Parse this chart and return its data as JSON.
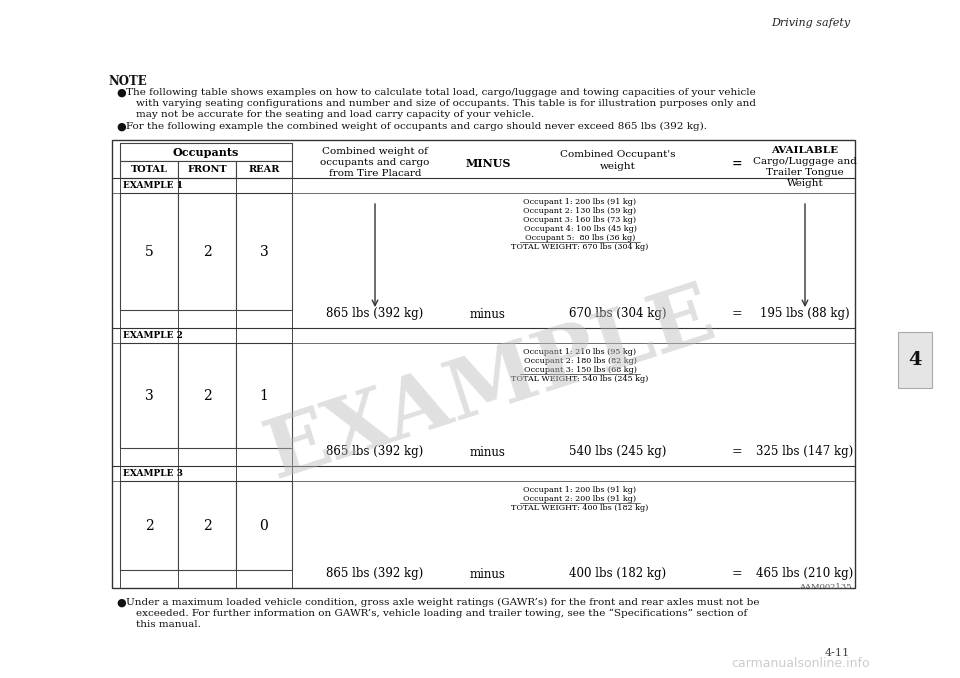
{
  "bg_color": "#ffffff",
  "page_header": "Driving safety",
  "chapter_number": "4",
  "note_title": "NOTE",
  "bullet1_line1": "The following table shows examples on how to calculate total load, cargo/luggage and towing capacities of your vehicle",
  "bullet1_line2": "with varying seating configurations and number and size of occupants. This table is for illustration purposes only and",
  "bullet1_line3": "may not be accurate for the seating and load carry capacity of your vehicle.",
  "bullet2": "For the following example the combined weight of occupants and cargo should never exceed 865 lbs (392 kg).",
  "table_header_occupants": "Occupants",
  "col_total": "TOTAL",
  "col_front": "FRONT",
  "col_rear": "REAR",
  "col2_header1": "Combined weight of",
  "col2_header2": "occupants and cargo",
  "col2_header3": "from Tire Placard",
  "col3_header": "MINUS",
  "col4_header1": "Combined Occupant's",
  "col4_header2": "weight",
  "col5_eq": "=",
  "col6_header1": "AVAILABLE",
  "col6_header2": "Cargo/Luggage and",
  "col6_header3": "Trailer Tongue",
  "col6_header4": "Weight",
  "example1_label": "EXAMPLE 1",
  "example1_total": "5",
  "example1_front": "2",
  "example1_rear": "3",
  "example1_combined": "865 lbs (392 kg)",
  "example1_minus": "minus",
  "example1_occ_list": [
    "Occupant 1: 200 lbs (91 kg)",
    "Occupant 2: 130 lbs (59 kg)",
    "Occupant 3: 160 lbs (73 kg)",
    "Occupant 4: 100 lbs (45 kg)",
    "Occupant 5:  80 lbs (36 kg)",
    "TOTAL WEIGHT: 670 lbs (304 kg)"
  ],
  "example1_occ_weight": "670 lbs (304 kg)",
  "example1_eq": "=",
  "example1_result": "195 lbs (88 kg)",
  "example2_label": "EXAMPLE 2",
  "example2_total": "3",
  "example2_front": "2",
  "example2_rear": "1",
  "example2_combined": "865 lbs (392 kg)",
  "example2_minus": "minus",
  "example2_occ_list": [
    "Occupant 1: 210 lbs (95 kg)",
    "Occupant 2: 180 lbs (82 kg)",
    "Occupant 3: 150 lbs (68 kg)",
    "TOTAL WEIGHT: 540 lbs (245 kg)"
  ],
  "example2_occ_weight": "540 lbs (245 kg)",
  "example2_eq": "=",
  "example2_result": "325 lbs (147 kg)",
  "example3_label": "EXAMPLE 3",
  "example3_total": "2",
  "example3_front": "2",
  "example3_rear": "0",
  "example3_combined": "865 lbs (392 kg)",
  "example3_minus": "minus",
  "example3_occ_list": [
    "Occupant 1: 200 lbs (91 kg)",
    "Occupant 2: 200 lbs (91 kg)",
    "TOTAL WEIGHT: 400 lbs (182 kg)"
  ],
  "example3_occ_weight": "400 lbs (182 kg)",
  "example3_eq": "=",
  "example3_result": "465 lbs (210 kg)",
  "diagram_id": "AAM002135",
  "bullet3_line1": "Under a maximum loaded vehicle condition, gross axle weight ratings (GAWR’s) for the front and rear axles must not be",
  "bullet3_line2": "exceeded. For further information on GAWR’s, vehicle loading and trailer towing, see the “Specifications” section of",
  "bullet3_line3": "this manual.",
  "watermark": "EXAMPLE",
  "footer_page": "4-11"
}
